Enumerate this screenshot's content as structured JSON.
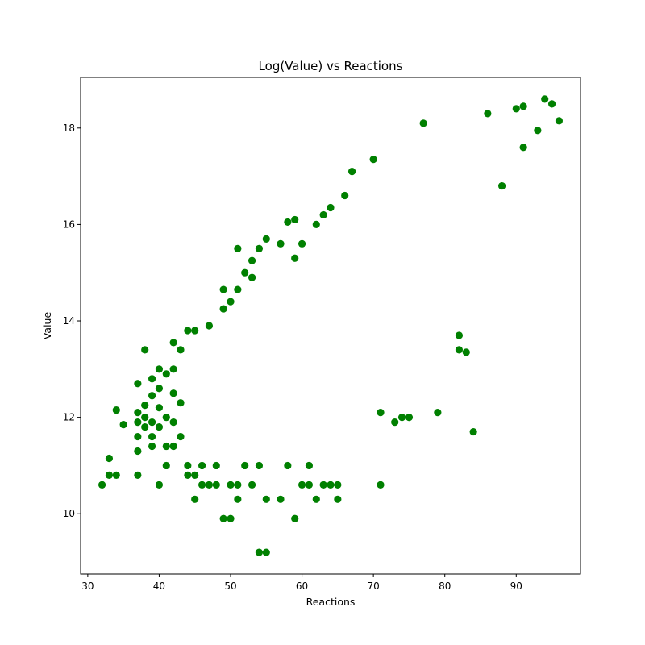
{
  "chart_data": {
    "type": "scatter",
    "title": "Log(Value) vs Reactions",
    "xlabel": "Reactions",
    "ylabel": "Value",
    "xlim": [
      29,
      99
    ],
    "ylim": [
      8.75,
      19.05
    ],
    "xticks": [
      30,
      40,
      50,
      60,
      70,
      80,
      90
    ],
    "yticks": [
      10,
      12,
      14,
      16,
      18
    ],
    "grid": false,
    "legend": "none",
    "marker_color": "#008000",
    "series": [
      {
        "points": [
          [
            32,
            10.6
          ],
          [
            33,
            10.8
          ],
          [
            33,
            11.15
          ],
          [
            34,
            10.8
          ],
          [
            34,
            12.15
          ],
          [
            35,
            11.85
          ],
          [
            37,
            10.8
          ],
          [
            37,
            11.3
          ],
          [
            37,
            11.6
          ],
          [
            37,
            11.9
          ],
          [
            37,
            12.1
          ],
          [
            37,
            12.7
          ],
          [
            38,
            11.8
          ],
          [
            38,
            12.0
          ],
          [
            38,
            12.25
          ],
          [
            38,
            13.4
          ],
          [
            39,
            11.4
          ],
          [
            39,
            11.6
          ],
          [
            39,
            11.9
          ],
          [
            39,
            12.45
          ],
          [
            39,
            12.8
          ],
          [
            40,
            10.6
          ],
          [
            40,
            11.8
          ],
          [
            40,
            12.2
          ],
          [
            40,
            12.6
          ],
          [
            40,
            13.0
          ],
          [
            41,
            11.0
          ],
          [
            41,
            11.4
          ],
          [
            41,
            12.0
          ],
          [
            41,
            12.9
          ],
          [
            42,
            11.4
          ],
          [
            42,
            11.9
          ],
          [
            42,
            12.5
          ],
          [
            42,
            13.0
          ],
          [
            42,
            13.55
          ],
          [
            43,
            11.6
          ],
          [
            43,
            12.3
          ],
          [
            43,
            13.4
          ],
          [
            44,
            10.8
          ],
          [
            44,
            11.0
          ],
          [
            44,
            13.8
          ],
          [
            45,
            10.3
          ],
          [
            45,
            10.8
          ],
          [
            45,
            13.8
          ],
          [
            46,
            10.6
          ],
          [
            46,
            11.0
          ],
          [
            47,
            10.6
          ],
          [
            47,
            13.9
          ],
          [
            48,
            10.6
          ],
          [
            48,
            11.0
          ],
          [
            49,
            9.9
          ],
          [
            49,
            14.65
          ],
          [
            49,
            14.25
          ],
          [
            50,
            9.9
          ],
          [
            50,
            14.4
          ],
          [
            50,
            10.6
          ],
          [
            51,
            10.3
          ],
          [
            51,
            10.6
          ],
          [
            51,
            14.65
          ],
          [
            51,
            15.5
          ],
          [
            52,
            11.0
          ],
          [
            52,
            15.0
          ],
          [
            53,
            10.6
          ],
          [
            53,
            14.9
          ],
          [
            53,
            15.25
          ],
          [
            54,
            9.2
          ],
          [
            54,
            11.0
          ],
          [
            54,
            15.5
          ],
          [
            55,
            9.2
          ],
          [
            55,
            10.3
          ],
          [
            55,
            15.7
          ],
          [
            57,
            10.3
          ],
          [
            57,
            15.6
          ],
          [
            58,
            11.0
          ],
          [
            58,
            16.05
          ],
          [
            59,
            9.9
          ],
          [
            59,
            15.3
          ],
          [
            59,
            16.1
          ],
          [
            60,
            10.6
          ],
          [
            60,
            15.6
          ],
          [
            61,
            10.6
          ],
          [
            61,
            11.0
          ],
          [
            62,
            10.3
          ],
          [
            62,
            16.0
          ],
          [
            63,
            10.6
          ],
          [
            63,
            16.2
          ],
          [
            64,
            10.6
          ],
          [
            64,
            16.35
          ],
          [
            65,
            10.3
          ],
          [
            65,
            10.6
          ],
          [
            66,
            16.6
          ],
          [
            67,
            17.1
          ],
          [
            70,
            17.35
          ],
          [
            71,
            10.6
          ],
          [
            71,
            12.1
          ],
          [
            73,
            11.9
          ],
          [
            74,
            12.0
          ],
          [
            75,
            12.0
          ],
          [
            77,
            18.1
          ],
          [
            79,
            12.1
          ],
          [
            82,
            13.7
          ],
          [
            82,
            13.4
          ],
          [
            83,
            13.35
          ],
          [
            84,
            11.7
          ],
          [
            86,
            18.3
          ],
          [
            88,
            16.8
          ],
          [
            90,
            18.4
          ],
          [
            91,
            18.45
          ],
          [
            91,
            17.6
          ],
          [
            93,
            17.95
          ],
          [
            94,
            18.6
          ],
          [
            95,
            18.5
          ],
          [
            96,
            18.15
          ]
        ]
      }
    ]
  }
}
